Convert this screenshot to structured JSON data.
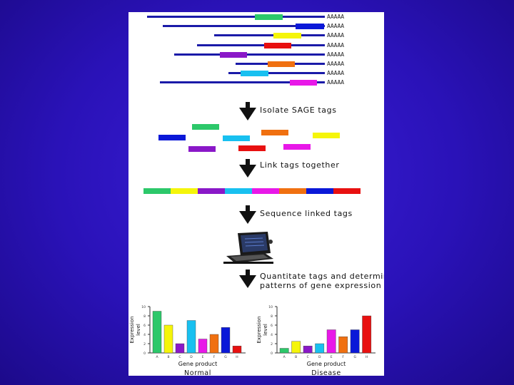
{
  "colors": {
    "green": "#2cc86a",
    "blue": "#0a18d8",
    "yellow": "#f5f50a",
    "red": "#e81010",
    "purple": "#8a18c8",
    "orange": "#f07010",
    "cyan": "#18c0f0",
    "magenta": "#e818e8",
    "line": "#1a1aa8"
  },
  "transcripts": {
    "polya_label": "AAAAA",
    "rows": [
      {
        "line_start": 26,
        "line_end": 275,
        "tag_start": 177,
        "tag_end": 216,
        "color": "green"
      },
      {
        "line_start": 48,
        "line_end": 275,
        "tag_start": 234,
        "tag_end": 274,
        "color": "blue"
      },
      {
        "line_start": 120,
        "line_end": 275,
        "tag_start": 203,
        "tag_end": 242,
        "color": "yellow"
      },
      {
        "line_start": 96,
        "line_end": 275,
        "tag_start": 190,
        "tag_end": 228,
        "color": "red"
      },
      {
        "line_start": 64,
        "line_end": 275,
        "tag_start": 128,
        "tag_end": 166,
        "color": "purple"
      },
      {
        "line_start": 150,
        "line_end": 275,
        "tag_start": 195,
        "tag_end": 233,
        "color": "orange"
      },
      {
        "line_start": 140,
        "line_end": 275,
        "tag_start": 157,
        "tag_end": 196,
        "color": "cyan"
      },
      {
        "line_start": 44,
        "line_end": 275,
        "tag_start": 226,
        "tag_end": 264,
        "color": "magenta"
      }
    ]
  },
  "steps": [
    {
      "label_lines": [
        "Isolate SAGE tags"
      ]
    },
    {
      "label_lines": [
        "Link tags together"
      ]
    },
    {
      "label_lines": [
        "Sequence linked tags"
      ]
    },
    {
      "label_lines": [
        "Quantitate tags and determine",
        "patterns of gene expression"
      ]
    }
  ],
  "isolated_tags": [
    {
      "color": "green"
    },
    {
      "color": "blue"
    },
    {
      "color": "cyan"
    },
    {
      "color": "orange"
    },
    {
      "color": "yellow"
    },
    {
      "color": "purple"
    },
    {
      "color": "red"
    },
    {
      "color": "magenta"
    }
  ],
  "linked_tags": [
    "green",
    "yellow",
    "purple",
    "cyan",
    "magenta",
    "orange",
    "blue",
    "red"
  ],
  "chart_data": [
    {
      "type": "bar",
      "title": "Normal",
      "xlabel": "Gene product",
      "ylabel": "Expression level",
      "ylim": [
        0,
        10
      ],
      "yticks": [
        "0",
        "2",
        "4",
        "6",
        "8",
        "10"
      ],
      "categories": [
        "A",
        "B",
        "C",
        "D",
        "E",
        "F",
        "G",
        "H"
      ],
      "values": [
        9,
        6,
        2,
        7,
        3,
        4,
        5.5,
        1.5
      ],
      "colors": [
        "green",
        "yellow",
        "purple",
        "cyan",
        "magenta",
        "orange",
        "blue",
        "red"
      ],
      "grid": false
    },
    {
      "type": "bar",
      "title": "Disease",
      "xlabel": "Gene product",
      "ylabel": "Expression level",
      "ylim": [
        0,
        10
      ],
      "yticks": [
        "0",
        "2",
        "4",
        "6",
        "8",
        "10"
      ],
      "categories": [
        "A",
        "B",
        "C",
        "D",
        "E",
        "F",
        "G",
        "H"
      ],
      "values": [
        1,
        2.5,
        1.5,
        2,
        5,
        3.5,
        5,
        8
      ],
      "colors": [
        "green",
        "yellow",
        "purple",
        "cyan",
        "magenta",
        "orange",
        "blue",
        "red"
      ],
      "grid": false
    }
  ]
}
